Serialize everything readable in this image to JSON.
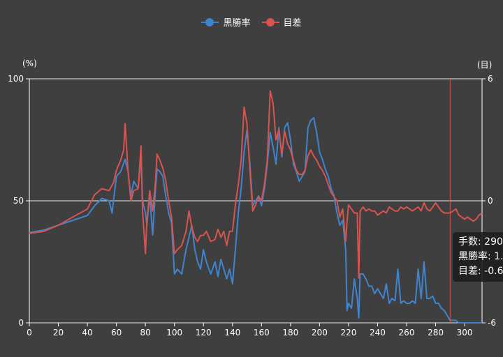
{
  "legend": [
    {
      "name": "黒勝率",
      "color": "#3f84cf"
    },
    {
      "name": "目差",
      "color": "#d9534f"
    }
  ],
  "axis_units": {
    "left": "(%)",
    "right": "(目)"
  },
  "tooltip": {
    "row1": "手数: 290",
    "row2": "黒勝率: 1.",
    "row3": "目差: -0.6"
  },
  "chart_data": {
    "type": "line",
    "xlim": [
      0,
      312
    ],
    "x_ticks": [
      "0",
      "20",
      "40",
      "60",
      "80",
      "100",
      "120",
      "140",
      "160",
      "180",
      "200",
      "220",
      "240",
      "260",
      "280",
      "300"
    ],
    "y_left": {
      "lim": [
        0,
        100
      ],
      "ticks": [
        "0",
        "50",
        "100"
      ],
      "unit": "(%)"
    },
    "y_right": {
      "lim": [
        -6,
        6
      ],
      "ticks": [
        "-6",
        "0",
        "6"
      ],
      "unit": "(目)"
    },
    "cursor_x": 290,
    "series": [
      {
        "name": "黒勝率",
        "axis": "left",
        "color": "#3f84cf",
        "points": [
          [
            0,
            37
          ],
          [
            10,
            38
          ],
          [
            20,
            40
          ],
          [
            30,
            42
          ],
          [
            40,
            44
          ],
          [
            45,
            48
          ],
          [
            50,
            51
          ],
          [
            55,
            50
          ],
          [
            57,
            45
          ],
          [
            60,
            60
          ],
          [
            63,
            62
          ],
          [
            66,
            67
          ],
          [
            68,
            62
          ],
          [
            70,
            52
          ],
          [
            72,
            58
          ],
          [
            75,
            55
          ],
          [
            77,
            68
          ],
          [
            78,
            50
          ],
          [
            80,
            45
          ],
          [
            81,
            40
          ],
          [
            83,
            52
          ],
          [
            85,
            36
          ],
          [
            87,
            55
          ],
          [
            88,
            63
          ],
          [
            90,
            62
          ],
          [
            92,
            60
          ],
          [
            94,
            52
          ],
          [
            96,
            45
          ],
          [
            98,
            41
          ],
          [
            100,
            20
          ],
          [
            102,
            22
          ],
          [
            105,
            20
          ],
          [
            108,
            30
          ],
          [
            110,
            35
          ],
          [
            112,
            40
          ],
          [
            114,
            30
          ],
          [
            116,
            25
          ],
          [
            118,
            22
          ],
          [
            120,
            30
          ],
          [
            122,
            25
          ],
          [
            125,
            20
          ],
          [
            128,
            25
          ],
          [
            130,
            19
          ],
          [
            132,
            26
          ],
          [
            134,
            22
          ],
          [
            136,
            18
          ],
          [
            138,
            22
          ],
          [
            140,
            16
          ],
          [
            142,
            30
          ],
          [
            144,
            45
          ],
          [
            146,
            55
          ],
          [
            148,
            70
          ],
          [
            150,
            79
          ],
          [
            152,
            65
          ],
          [
            154,
            48
          ],
          [
            156,
            50
          ],
          [
            158,
            52
          ],
          [
            160,
            48
          ],
          [
            162,
            55
          ],
          [
            164,
            65
          ],
          [
            166,
            78
          ],
          [
            168,
            72
          ],
          [
            170,
            65
          ],
          [
            172,
            80
          ],
          [
            174,
            68
          ],
          [
            176,
            80
          ],
          [
            178,
            82
          ],
          [
            180,
            75
          ],
          [
            182,
            65
          ],
          [
            184,
            62
          ],
          [
            186,
            58
          ],
          [
            188,
            60
          ],
          [
            190,
            62
          ],
          [
            192,
            80
          ],
          [
            194,
            83
          ],
          [
            196,
            84
          ],
          [
            198,
            78
          ],
          [
            200,
            70
          ],
          [
            202,
            67
          ],
          [
            204,
            63
          ],
          [
            206,
            60
          ],
          [
            208,
            55
          ],
          [
            210,
            52
          ],
          [
            212,
            45
          ],
          [
            214,
            40
          ],
          [
            216,
            42
          ],
          [
            218,
            30
          ],
          [
            219,
            5
          ],
          [
            220,
            8
          ],
          [
            222,
            6
          ],
          [
            224,
            18
          ],
          [
            226,
            10
          ],
          [
            227,
            2
          ],
          [
            228,
            20
          ],
          [
            230,
            20
          ],
          [
            232,
            18
          ],
          [
            234,
            15
          ],
          [
            236,
            15
          ],
          [
            238,
            12
          ],
          [
            240,
            14
          ],
          [
            242,
            12
          ],
          [
            244,
            10
          ],
          [
            246,
            16
          ],
          [
            248,
            8
          ],
          [
            250,
            10
          ],
          [
            252,
            9
          ],
          [
            254,
            22
          ],
          [
            256,
            8
          ],
          [
            258,
            9
          ],
          [
            260,
            8
          ],
          [
            262,
            8
          ],
          [
            264,
            9
          ],
          [
            266,
            8
          ],
          [
            268,
            22
          ],
          [
            270,
            10
          ],
          [
            272,
            25
          ],
          [
            274,
            10
          ],
          [
            276,
            10
          ],
          [
            278,
            11
          ],
          [
            280,
            8
          ],
          [
            282,
            8
          ],
          [
            284,
            6
          ],
          [
            286,
            5
          ],
          [
            288,
            3
          ],
          [
            290,
            1
          ],
          [
            292,
            1
          ],
          [
            294,
            1
          ],
          [
            296,
            0
          ],
          [
            300,
            0
          ],
          [
            305,
            0
          ],
          [
            312,
            0
          ]
        ]
      },
      {
        "name": "目差",
        "axis": "right",
        "color": "#d9534f",
        "points": [
          [
            0,
            -1.6
          ],
          [
            10,
            -1.5
          ],
          [
            20,
            -1.2
          ],
          [
            30,
            -0.8
          ],
          [
            40,
            -0.4
          ],
          [
            45,
            0.3
          ],
          [
            50,
            0.6
          ],
          [
            55,
            0.5
          ],
          [
            58,
            0.9
          ],
          [
            60,
            1.5
          ],
          [
            63,
            2
          ],
          [
            65,
            2.5
          ],
          [
            66,
            3.8
          ],
          [
            68,
            1.5
          ],
          [
            70,
            0
          ],
          [
            72,
            0.5
          ],
          [
            75,
            0.6
          ],
          [
            77,
            2.7
          ],
          [
            78,
            -0.5
          ],
          [
            80,
            -2.6
          ],
          [
            81,
            -1
          ],
          [
            83,
            0.5
          ],
          [
            85,
            -0.5
          ],
          [
            87,
            1
          ],
          [
            88,
            2.3
          ],
          [
            90,
            2
          ],
          [
            92,
            1.6
          ],
          [
            94,
            1
          ],
          [
            96,
            0
          ],
          [
            98,
            -0.8
          ],
          [
            100,
            -2.6
          ],
          [
            102,
            -2.4
          ],
          [
            105,
            -2.2
          ],
          [
            108,
            -1.5
          ],
          [
            110,
            -0.5
          ],
          [
            112,
            -1.3
          ],
          [
            114,
            -1.8
          ],
          [
            116,
            -2
          ],
          [
            118,
            -1.7
          ],
          [
            120,
            -1.7
          ],
          [
            122,
            -1.5
          ],
          [
            125,
            -2
          ],
          [
            128,
            -1.9
          ],
          [
            130,
            -1.4
          ],
          [
            132,
            -1.8
          ],
          [
            134,
            -1.5
          ],
          [
            136,
            -2.2
          ],
          [
            138,
            -1.5
          ],
          [
            140,
            -1.5
          ],
          [
            142,
            -0.2
          ],
          [
            144,
            0.8
          ],
          [
            146,
            2
          ],
          [
            148,
            4.6
          ],
          [
            150,
            3.8
          ],
          [
            152,
            1.5
          ],
          [
            154,
            -0.5
          ],
          [
            156,
            -0.2
          ],
          [
            158,
            0.2
          ],
          [
            160,
            0
          ],
          [
            162,
            0.8
          ],
          [
            164,
            2
          ],
          [
            166,
            5.4
          ],
          [
            168,
            4.8
          ],
          [
            170,
            3
          ],
          [
            172,
            3.5
          ],
          [
            174,
            2.3
          ],
          [
            176,
            3.4
          ],
          [
            178,
            2.8
          ],
          [
            180,
            2.5
          ],
          [
            182,
            2
          ],
          [
            184,
            1.5
          ],
          [
            186,
            1.3
          ],
          [
            188,
            1.3
          ],
          [
            190,
            1.5
          ],
          [
            192,
            2.2
          ],
          [
            194,
            2.5
          ],
          [
            196,
            2.2
          ],
          [
            198,
            2
          ],
          [
            200,
            1.7
          ],
          [
            202,
            1.5
          ],
          [
            204,
            1.2
          ],
          [
            206,
            0.8
          ],
          [
            208,
            0.4
          ],
          [
            210,
            0.2
          ],
          [
            212,
            0
          ],
          [
            214,
            -0.8
          ],
          [
            216,
            -0.4
          ],
          [
            218,
            -2
          ],
          [
            219,
            -1
          ],
          [
            220,
            -0.2
          ],
          [
            222,
            -0.4
          ],
          [
            224,
            -0.6
          ],
          [
            226,
            -0.6
          ],
          [
            227,
            -3.8
          ],
          [
            228,
            -0.5
          ],
          [
            230,
            -0.3
          ],
          [
            232,
            -0.5
          ],
          [
            234,
            -0.4
          ],
          [
            236,
            -0.5
          ],
          [
            238,
            -0.5
          ],
          [
            240,
            -0.7
          ],
          [
            242,
            -0.6
          ],
          [
            244,
            -0.5
          ],
          [
            246,
            -0.6
          ],
          [
            248,
            -0.3
          ],
          [
            250,
            -0.4
          ],
          [
            252,
            -0.5
          ],
          [
            254,
            -0.5
          ],
          [
            256,
            -0.3
          ],
          [
            258,
            -0.4
          ],
          [
            260,
            -0.3
          ],
          [
            262,
            -0.4
          ],
          [
            264,
            -0.5
          ],
          [
            266,
            -0.4
          ],
          [
            268,
            -0.3
          ],
          [
            270,
            -0.5
          ],
          [
            272,
            -0.1
          ],
          [
            274,
            -0.4
          ],
          [
            276,
            -0.5
          ],
          [
            278,
            -0.3
          ],
          [
            280,
            -0.1
          ],
          [
            282,
            -0.3
          ],
          [
            284,
            -0.5
          ],
          [
            286,
            -0.6
          ],
          [
            288,
            -0.6
          ],
          [
            290,
            -0.6
          ],
          [
            292,
            -0.5
          ],
          [
            294,
            -0.4
          ],
          [
            296,
            -0.7
          ],
          [
            298,
            -0.8
          ],
          [
            300,
            -0.9
          ],
          [
            302,
            -0.8
          ],
          [
            304,
            -0.9
          ],
          [
            306,
            -1.0
          ],
          [
            308,
            -0.9
          ],
          [
            310,
            -0.7
          ],
          [
            312,
            -0.6
          ]
        ]
      }
    ]
  }
}
